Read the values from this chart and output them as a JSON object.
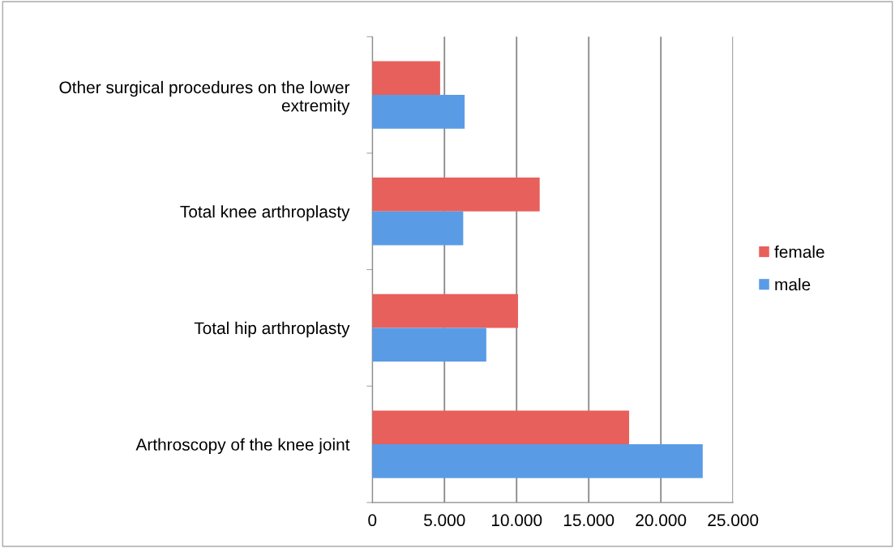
{
  "chart_data": {
    "type": "bar",
    "orientation": "horizontal",
    "categories": [
      "Other surgical procedures on the lower\nextremity",
      "Total knee arthroplasty",
      "Total hip arthroplasty",
      "Arthroscopy of the knee joint"
    ],
    "series": [
      {
        "name": "female",
        "color": "#e8605c",
        "values": [
          4700,
          11600,
          10100,
          17800
        ]
      },
      {
        "name": "male",
        "color": "#5a9be6",
        "values": [
          6400,
          6300,
          7900,
          22900
        ]
      }
    ],
    "xlim": [
      0,
      25000
    ],
    "xticks": [
      {
        "value": 0,
        "label": "0"
      },
      {
        "value": 5000,
        "label": "5.000"
      },
      {
        "value": 10000,
        "label": "10.000"
      },
      {
        "value": 15000,
        "label": "15.000"
      },
      {
        "value": 20000,
        "label": "20.000"
      },
      {
        "value": 25000,
        "label": "25.000"
      }
    ],
    "grid": "x",
    "legend": "right"
  }
}
